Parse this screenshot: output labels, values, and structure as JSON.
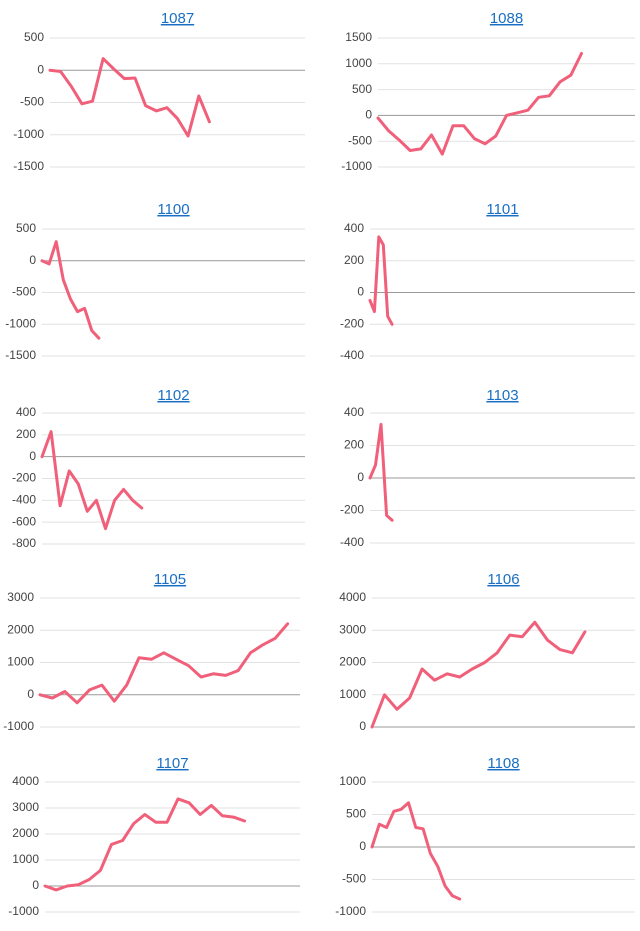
{
  "chart_data": [
    {
      "type": "line",
      "title": "1087",
      "color": "#f0607a",
      "xlim": [
        0,
        24
      ],
      "ylim": [
        -1500,
        500
      ],
      "yticks": [
        500,
        0,
        -500,
        -1000,
        -1500
      ],
      "values": [
        0,
        -20,
        -250,
        -520,
        -480,
        180,
        20,
        -130,
        -120,
        -550,
        -630,
        -580,
        -750,
        -1020,
        -400,
        -800
      ]
    },
    {
      "type": "line",
      "title": "1088",
      "color": "#f0607a",
      "xlim": [
        0,
        24
      ],
      "ylim": [
        -1000,
        1500
      ],
      "yticks": [
        1500,
        1000,
        500,
        0,
        -500,
        -1000
      ],
      "values": [
        -50,
        -300,
        -480,
        -680,
        -650,
        -380,
        -750,
        -200,
        -200,
        -450,
        -550,
        -400,
        0,
        50,
        100,
        350,
        380,
        650,
        780,
        1200
      ]
    },
    {
      "type": "line",
      "title": "1100",
      "color": "#f0607a",
      "xlim": [
        0,
        37
      ],
      "ylim": [
        -1500,
        500
      ],
      "yticks": [
        500,
        0,
        -500,
        -1000,
        -1500
      ],
      "values": [
        0,
        -50,
        300,
        -300,
        -600,
        -800,
        -750,
        -1100,
        -1220
      ]
    },
    {
      "type": "line",
      "title": "1101",
      "color": "#f0607a",
      "xlim": [
        0,
        60
      ],
      "ylim": [
        -400,
        400
      ],
      "yticks": [
        400,
        200,
        0,
        -200,
        -400
      ],
      "values": [
        -50,
        -120,
        350,
        300,
        -150,
        -200
      ]
    },
    {
      "type": "line",
      "title": "1102",
      "color": "#f0607a",
      "xlim": [
        0,
        29
      ],
      "ylim": [
        -800,
        400
      ],
      "yticks": [
        400,
        200,
        0,
        -200,
        -400,
        -600,
        -800
      ],
      "values": [
        0,
        230,
        -450,
        -130,
        -250,
        -500,
        -400,
        -660,
        -400,
        -300,
        -400,
        -470
      ]
    },
    {
      "type": "line",
      "title": "1103",
      "color": "#f0607a",
      "xlim": [
        0,
        48
      ],
      "ylim": [
        -400,
        400
      ],
      "yticks": [
        400,
        200,
        0,
        -200,
        -400
      ],
      "values": [
        0,
        80,
        330,
        -230,
        -260
      ]
    },
    {
      "type": "line",
      "title": "1105",
      "color": "#f0607a",
      "xlim": [
        0,
        21
      ],
      "ylim": [
        -1000,
        3000
      ],
      "yticks": [
        3000,
        2000,
        1000,
        0,
        -1000
      ],
      "values": [
        0,
        -100,
        100,
        -250,
        150,
        300,
        -200,
        300,
        1150,
        1100,
        1300,
        1100,
        900,
        550,
        650,
        600,
        750,
        1300,
        1550,
        1750,
        2200
      ]
    },
    {
      "type": "line",
      "title": "1106",
      "color": "#f0607a",
      "xlim": [
        0,
        21
      ],
      "ylim": [
        0,
        4000
      ],
      "yticks": [
        4000,
        3000,
        2000,
        1000,
        0
      ],
      "values": [
        0,
        1000,
        550,
        900,
        1800,
        1450,
        1650,
        1550,
        1800,
        2000,
        2300,
        2850,
        2800,
        3250,
        2700,
        2400,
        2300,
        2950
      ]
    },
    {
      "type": "line",
      "title": "1107",
      "color": "#f0607a",
      "xlim": [
        0,
        23
      ],
      "ylim": [
        -1000,
        4000
      ],
      "yticks": [
        4000,
        3000,
        2000,
        1000,
        0,
        -1000
      ],
      "values": [
        0,
        -150,
        0,
        50,
        250,
        600,
        1600,
        1750,
        2400,
        2750,
        2450,
        2450,
        3350,
        3200,
        2750,
        3100,
        2700,
        2650,
        2500
      ]
    },
    {
      "type": "line",
      "title": "1108",
      "color": "#f0607a",
      "xlim": [
        0,
        36
      ],
      "ylim": [
        -1000,
        1000
      ],
      "yticks": [
        1000,
        500,
        0,
        -500,
        -1000
      ],
      "values": [
        0,
        350,
        300,
        550,
        580,
        680,
        300,
        280,
        -100,
        -300,
        -600,
        -750,
        -800
      ]
    }
  ]
}
